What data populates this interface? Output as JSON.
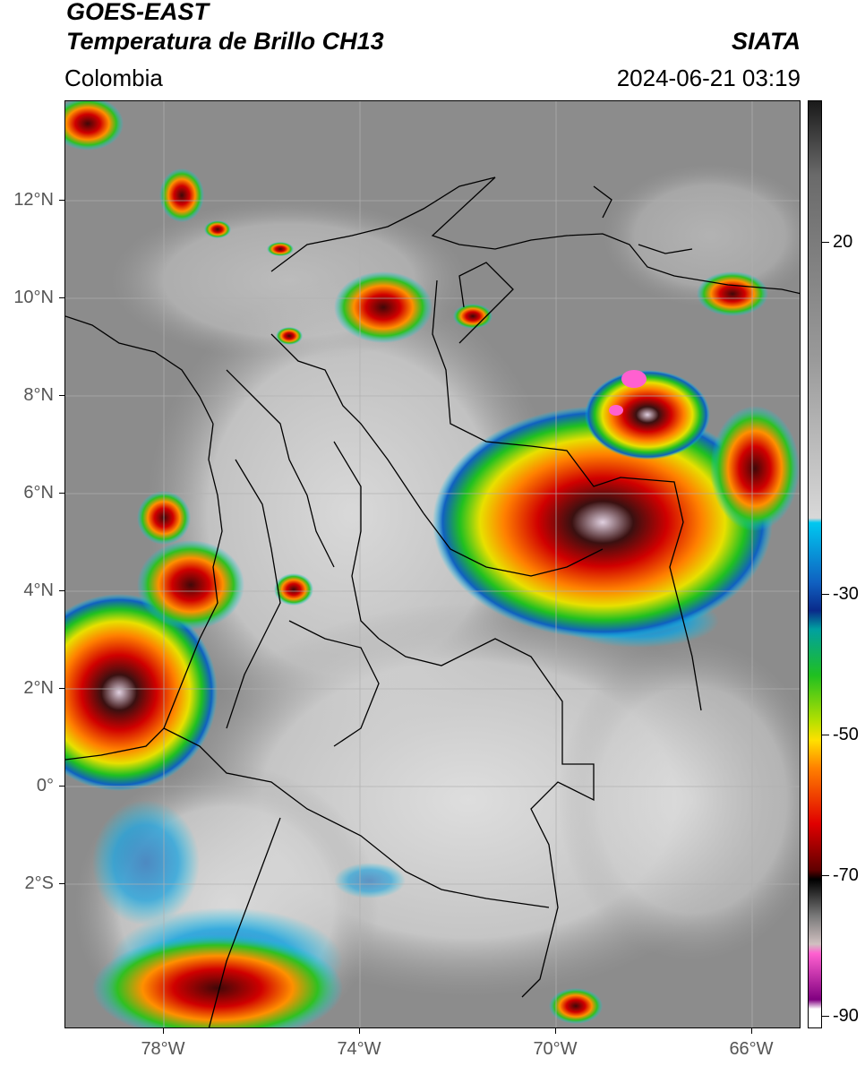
{
  "header": {
    "satellite": "GOES-EAST",
    "product": "Temperatura de Brillo CH13",
    "region": "Colombia",
    "organization": "SIATA",
    "datetime": "2024-06-21 03:19"
  },
  "map": {
    "lat_labels": [
      "12°N",
      "10°N",
      "8°N",
      "6°N",
      "4°N",
      "2°N",
      "0°",
      "2°S"
    ],
    "lon_labels": [
      "78°W",
      "74°W",
      "70°W",
      "66°W"
    ],
    "background_gray": "#8c8c8c"
  },
  "colorbar": {
    "labels": [
      "20",
      "-30",
      "-50",
      "-70",
      "-90"
    ],
    "stops": [
      "#1a1a1a",
      "#6a6a6a",
      "#9a9a9a",
      "#d8d8d8",
      "#00c8f0",
      "#1060c0",
      "#0a2a8a",
      "#00a0a0",
      "#20c020",
      "#b8e000",
      "#ffe000",
      "#ff8000",
      "#e00000",
      "#600000",
      "#000000",
      "#7a7a7a",
      "#d0c0c0",
      "#ff60d0",
      "#800080",
      "#ffffff"
    ]
  }
}
